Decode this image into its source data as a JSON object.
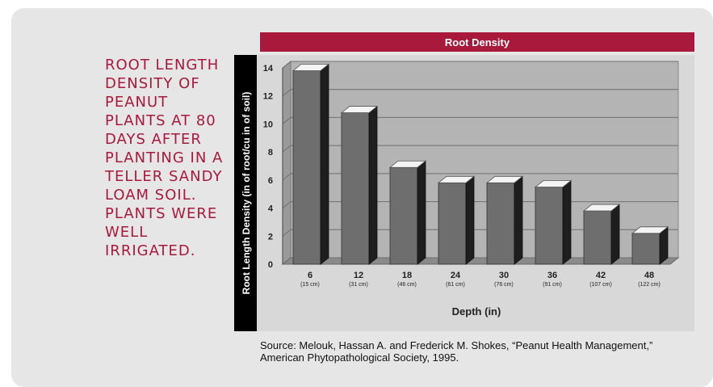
{
  "caption": "ROOT LENGTH DENSITY OF PEANUT PLANTS AT 80 DAYS AFTER PLANTING IN A TELLER SANDY LOAM SOIL. PLANTS WERE WELL IRRIGATED.",
  "source": "Source: Melouk, Hassan A. and Frederick M. Shokes, “Peanut Health Management,” American Phytopathological Society, 1995.",
  "colors": {
    "accent": "#a8193c",
    "bar_front": "#6e6e6e",
    "bar_side": "#1e1e1e",
    "bar_top": "#f4f4f4",
    "plot_bg": "#b4b4b4",
    "floor": "#8a8a8a"
  },
  "chart_data": {
    "type": "bar",
    "title": "Root Density",
    "xlabel": "Depth (in)",
    "ylabel": "Root Length Density (in of root/cu in of soil)",
    "categories": [
      "6",
      "12",
      "18",
      "24",
      "30",
      "36",
      "42",
      "48"
    ],
    "category_sublabels": [
      "(15 cm)",
      "(31 cm)",
      "(46 cm)",
      "(61 cm)",
      "(76 cm)",
      "(91 cm)",
      "(107 cm)",
      "(122 cm)"
    ],
    "values": [
      13.8,
      10.8,
      6.9,
      5.8,
      5.8,
      5.5,
      3.8,
      2.2
    ],
    "ylim": [
      0,
      14
    ],
    "yticks": [
      0,
      2,
      4,
      6,
      8,
      10,
      12,
      14
    ],
    "grid": true,
    "legend": "none"
  }
}
